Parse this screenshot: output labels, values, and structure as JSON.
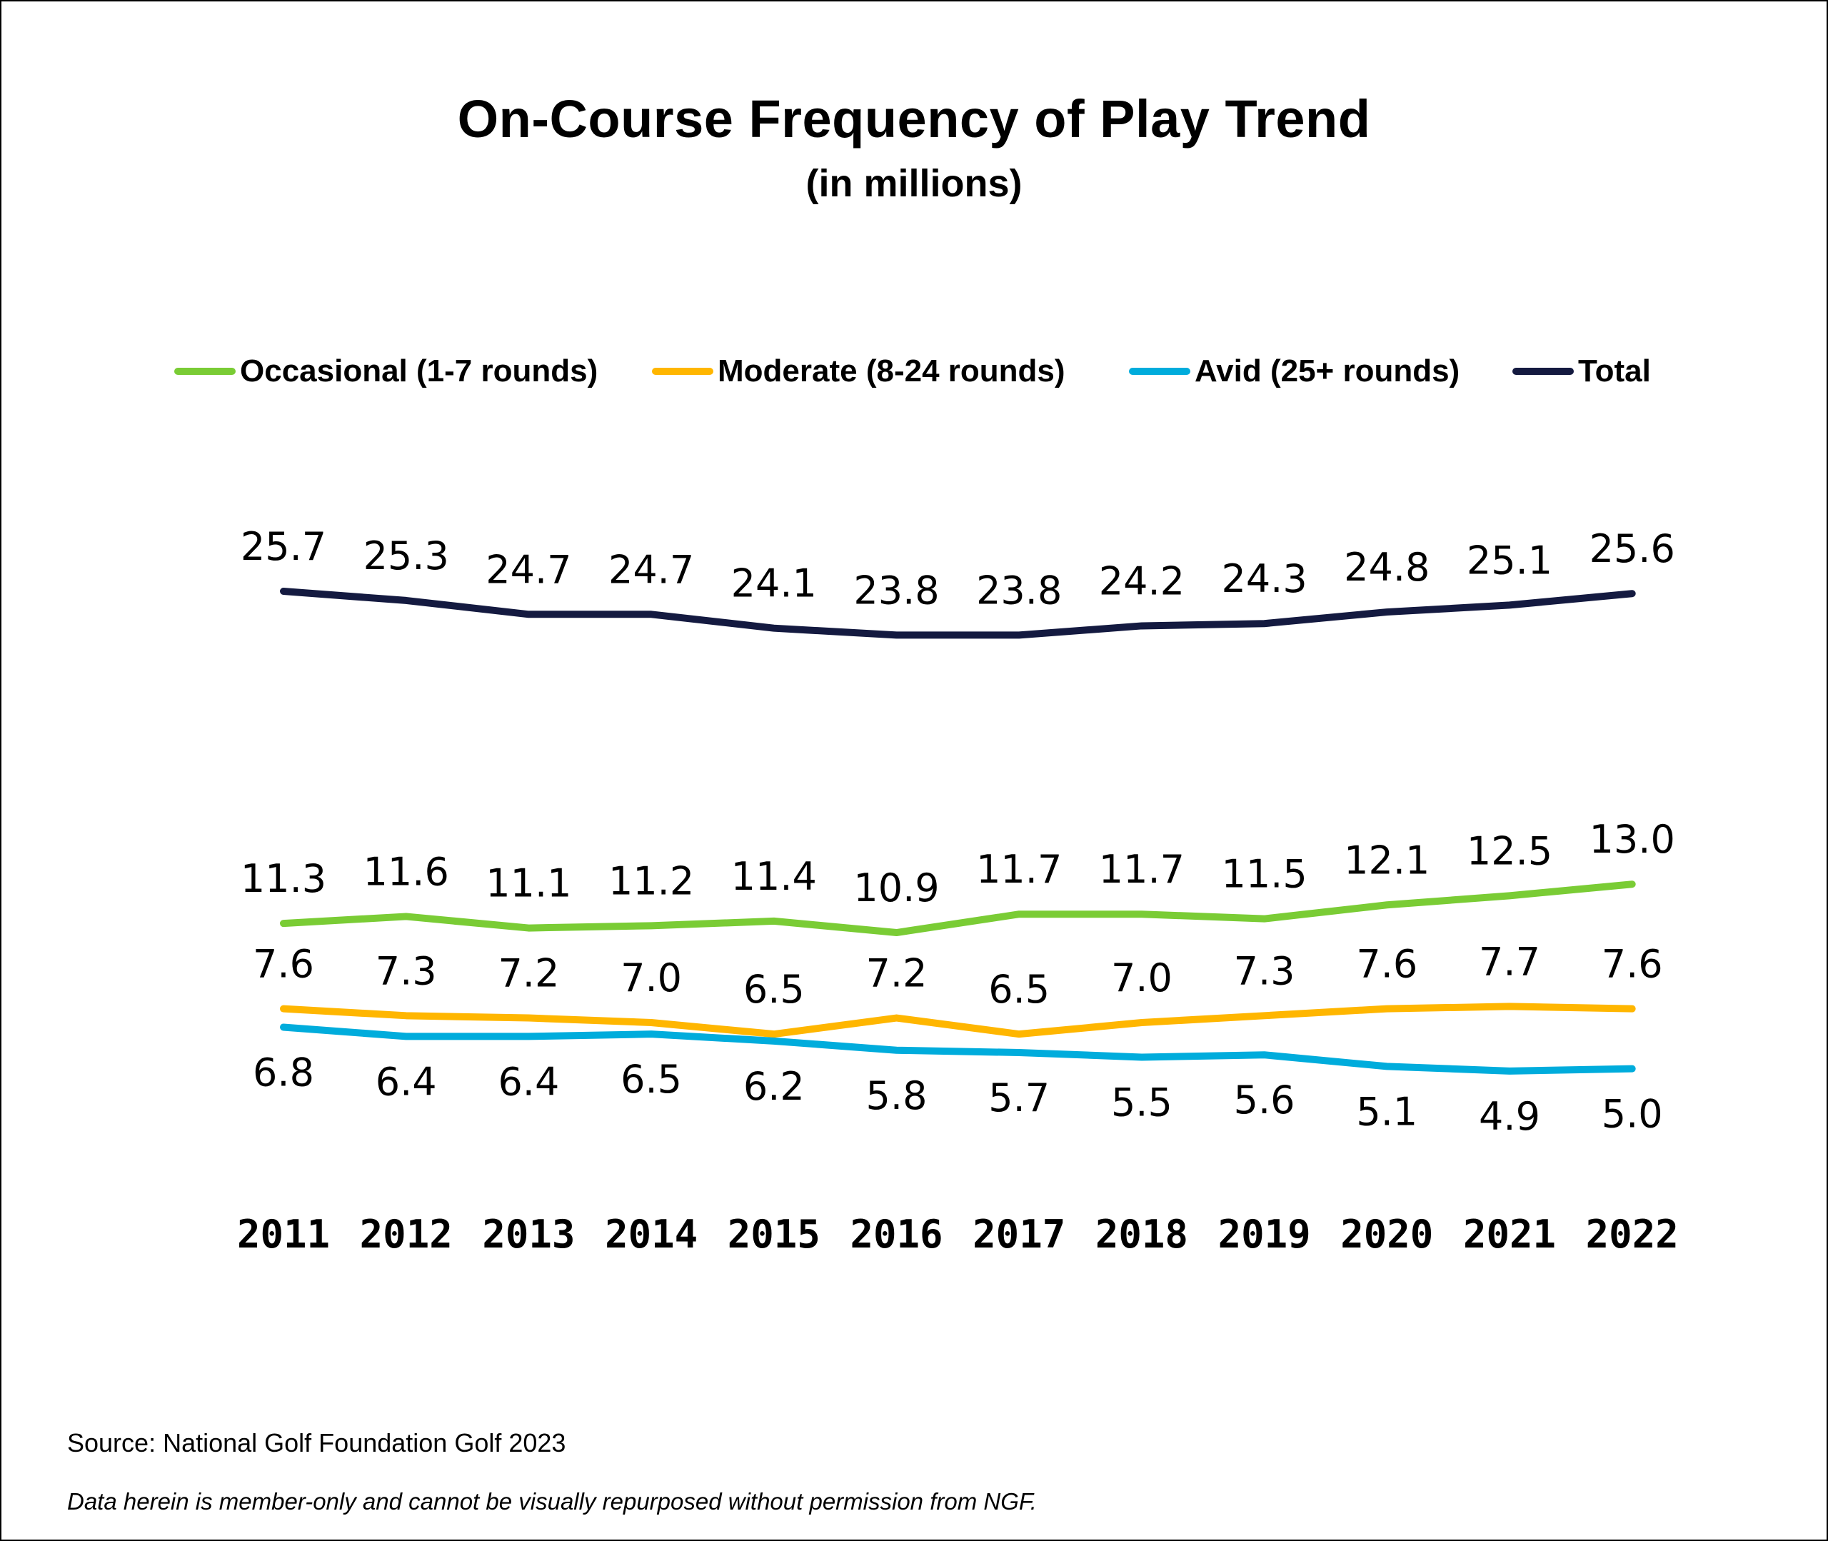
{
  "chart_data": {
    "type": "line",
    "title": "On-Course Frequency of Play Trend",
    "subtitle": "(in millions)",
    "categories": [
      "2011",
      "2012",
      "2013",
      "2014",
      "2015",
      "2016",
      "2017",
      "2018",
      "2019",
      "2020",
      "2021",
      "2022"
    ],
    "series": [
      {
        "name": "Occasional (1-7 rounds)",
        "color": "#7acc35",
        "label_position": "above",
        "values": [
          11.3,
          11.6,
          11.1,
          11.2,
          11.4,
          10.9,
          11.7,
          11.7,
          11.5,
          12.1,
          12.5,
          13.0
        ]
      },
      {
        "name": "Moderate (8-24 rounds)",
        "color": "#ffb600",
        "label_position": "above",
        "values": [
          7.6,
          7.3,
          7.2,
          7.0,
          6.5,
          7.2,
          6.5,
          7.0,
          7.3,
          7.6,
          7.7,
          7.6
        ]
      },
      {
        "name": "Avid (25+ rounds)",
        "color": "#00acdc",
        "label_position": "below",
        "values": [
          6.8,
          6.4,
          6.4,
          6.5,
          6.2,
          5.8,
          5.7,
          5.5,
          5.6,
          5.1,
          4.9,
          5.0
        ]
      },
      {
        "name": "Total",
        "color": "#141a40",
        "label_position": "above",
        "values": [
          25.7,
          25.3,
          24.7,
          24.7,
          24.1,
          23.8,
          23.8,
          24.2,
          24.3,
          24.8,
          25.1,
          25.6
        ]
      }
    ],
    "legend_position": "top",
    "grid": false,
    "y_axis_visible": false
  },
  "footer": {
    "source": "Source: National Golf Foundation Golf 2023",
    "note": "Data herein is member-only and cannot be visually repurposed without permission from NGF."
  }
}
